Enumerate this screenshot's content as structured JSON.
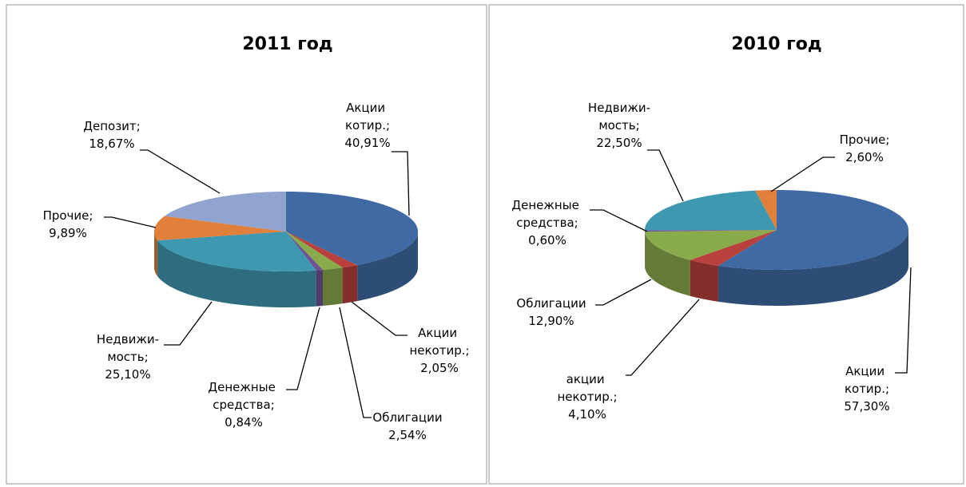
{
  "chart_data": [
    {
      "type": "pie3d",
      "title": "2011 год",
      "categories": [
        "Акции котир.;",
        "Акции некотир.;",
        "Облигации",
        "Денежные средства;",
        "Недвижи-мость;",
        "Прочие;",
        "Депозит;"
      ],
      "values": [
        40.91,
        2.05,
        2.54,
        0.84,
        25.1,
        9.89,
        18.67
      ],
      "value_labels": [
        "40,91%",
        "2,05%",
        "2,54%",
        "0,84%",
        "25,10%",
        "9,89%",
        "18,67%"
      ],
      "colors": [
        "#3f6aa4",
        "#b8403d",
        "#8aab4c",
        "#6f5394",
        "#3e98b0",
        "#e0803a",
        "#90a4cf"
      ]
    },
    {
      "type": "pie3d",
      "title": "2010 год",
      "categories": [
        "Акции котир.;",
        "акции некотир.;",
        "Облигации",
        "Денежные средства;",
        "Недвижи-мость;",
        "Прочие;"
      ],
      "values": [
        57.3,
        4.1,
        12.9,
        0.6,
        22.5,
        2.6
      ],
      "value_labels": [
        "57,30%",
        "4,10%",
        "12,90%",
        "0,60%",
        "22,50%",
        "2,60%"
      ],
      "colors": [
        "#3f6aa4",
        "#b8403d",
        "#8aab4c",
        "#6f5394",
        "#3e98b0",
        "#e0803a"
      ]
    }
  ]
}
